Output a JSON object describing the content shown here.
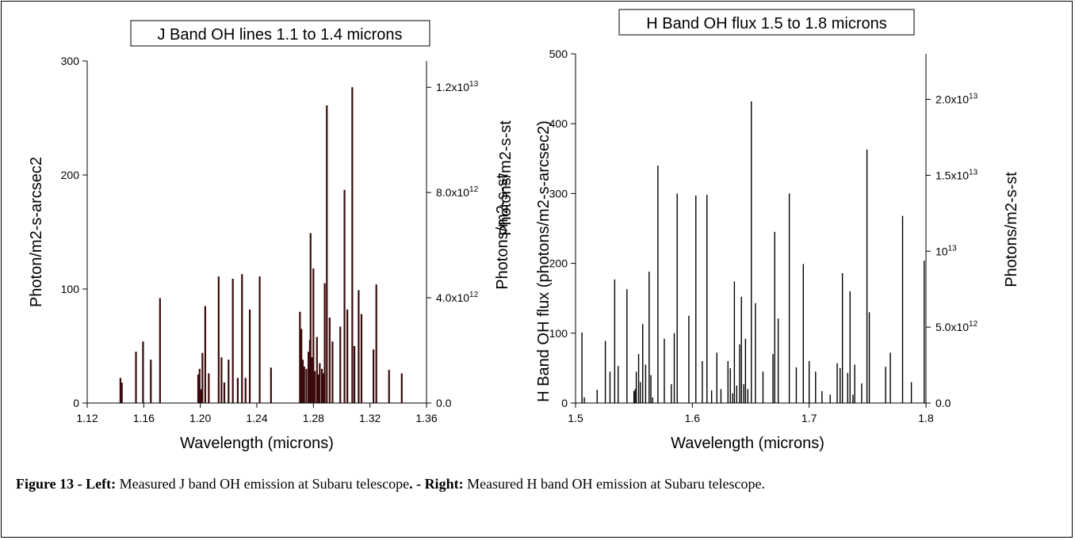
{
  "figure": {
    "caption": {
      "number_label": "Figure 13 - ",
      "left_label": "Left:",
      "left_text": " Measured J band OH emission at Subaru telescope",
      "sep_label": ". - ",
      "right_label": "Right:",
      "right_text": " Measured H band OH emission at Subaru telescope."
    }
  },
  "chart_data": [
    {
      "type": "bar",
      "title": "J Band OH lines 1.1 to 1.4 microns",
      "xlabel": "Wavelength (microns)",
      "ylabel": "Photon/m2-s-arcsec2",
      "ylabel_right": "Photons/m2-s-st",
      "xlim": [
        1.12,
        1.36
      ],
      "ylim": [
        0,
        300
      ],
      "xticks": [
        "1.12",
        "1.16",
        "1.20",
        "1.24",
        "1.28",
        "1.32",
        "1.36"
      ],
      "yticks": [
        "0",
        "100",
        "200",
        "300"
      ],
      "right_ticks": [
        {
          "value": 0,
          "label": "0.0"
        },
        {
          "value": 4000000000000.0,
          "label": "4.0x10",
          "exp": "12"
        },
        {
          "value": 8000000000000.0,
          "label": "8.0x10",
          "exp": "12"
        },
        {
          "value": 12000000000000.0,
          "label": "1.2x10",
          "exp": "13"
        }
      ],
      "right_ylim": [
        0,
        13000000000000.0
      ],
      "line_color": "#3a0a0a",
      "x": [
        1.1435,
        1.1445,
        1.1545,
        1.1595,
        1.165,
        1.1715,
        1.1985,
        1.1995,
        1.2005,
        1.2015,
        1.2035,
        1.206,
        1.213,
        1.215,
        1.217,
        1.22,
        1.223,
        1.2265,
        1.2295,
        1.232,
        1.235,
        1.242,
        1.25,
        1.2705,
        1.2715,
        1.2725,
        1.2735,
        1.275,
        1.2765,
        1.2775,
        1.278,
        1.279,
        1.28,
        1.281,
        1.2825,
        1.2835,
        1.2845,
        1.286,
        1.287,
        1.288,
        1.2895,
        1.2915,
        1.2935,
        1.299,
        1.302,
        1.304,
        1.3075,
        1.309,
        1.312,
        1.314,
        1.3225,
        1.3245,
        1.3335,
        1.3425
      ],
      "values": [
        22,
        18,
        45,
        54,
        38,
        92,
        25,
        30,
        12,
        44,
        85,
        26,
        111,
        40,
        18,
        38,
        109,
        22,
        113,
        22,
        82,
        111,
        31,
        80,
        65,
        38,
        32,
        30,
        45,
        55,
        149,
        40,
        118,
        28,
        58,
        25,
        35,
        30,
        26,
        105,
        261,
        75,
        54,
        67,
        187,
        82,
        277,
        50,
        99,
        78,
        47,
        104,
        29,
        26
      ]
    },
    {
      "type": "bar",
      "title": "H Band OH flux 1.5 to 1.8 microns",
      "xlabel": "Wavelength (microns)",
      "ylabel": "H Band OH flux (photons/m2-s-arcsec2)",
      "ylabel2": "Photons/m2-s-st",
      "ylabel_right": "Photons/m2-s-st",
      "xlim": [
        1.5,
        1.8
      ],
      "ylim": [
        0,
        500
      ],
      "xticks": [
        "1.5",
        "1.6",
        "1.7",
        "1.8"
      ],
      "yticks": [
        "0",
        "100",
        "200",
        "300",
        "400",
        "500"
      ],
      "right_ticks": [
        {
          "value": 0,
          "label": "0.0"
        },
        {
          "value": 5000000000000.0,
          "label": "5.0x10",
          "exp": "12"
        },
        {
          "value": 10000000000000.0,
          "label": "10",
          "exp": "13"
        },
        {
          "value": 15000000000000.0,
          "label": "1.5x10",
          "exp": "13"
        },
        {
          "value": 20000000000000.0,
          "label": "2.0x10",
          "exp": "13"
        }
      ],
      "right_ylim": [
        0,
        23000000000000.0
      ],
      "line_color": "#000000",
      "x": [
        1.5055,
        1.5075,
        1.5185,
        1.5255,
        1.5295,
        1.5335,
        1.5365,
        1.544,
        1.55,
        1.551,
        1.552,
        1.554,
        1.5555,
        1.5575,
        1.56,
        1.563,
        1.5645,
        1.566,
        1.5705,
        1.576,
        1.582,
        1.5845,
        1.587,
        1.597,
        1.603,
        1.6085,
        1.6125,
        1.6165,
        1.621,
        1.6245,
        1.6305,
        1.6325,
        1.6345,
        1.636,
        1.638,
        1.6405,
        1.642,
        1.644,
        1.6455,
        1.6475,
        1.6505,
        1.654,
        1.6605,
        1.669,
        1.6705,
        1.6735,
        1.683,
        1.689,
        1.695,
        1.7,
        1.7055,
        1.711,
        1.718,
        1.724,
        1.7265,
        1.7285,
        1.733,
        1.735,
        1.7375,
        1.739,
        1.745,
        1.7495,
        1.7515,
        1.7655,
        1.7695,
        1.78,
        1.7875,
        1.7985
      ],
      "values": [
        101,
        8,
        19,
        89,
        45,
        177,
        53,
        163,
        17,
        20,
        45,
        70,
        30,
        113,
        55,
        188,
        40,
        8,
        340,
        92,
        27,
        100,
        300,
        125,
        297,
        60,
        298,
        18,
        72,
        20,
        60,
        50,
        14,
        174,
        25,
        84,
        152,
        27,
        92,
        20,
        432,
        143,
        45,
        70,
        245,
        121,
        300,
        51,
        199,
        60,
        45,
        17,
        12,
        57,
        50,
        186,
        43,
        160,
        12,
        55,
        28,
        363,
        130,
        52,
        72,
        268,
        30,
        204
      ]
    }
  ]
}
